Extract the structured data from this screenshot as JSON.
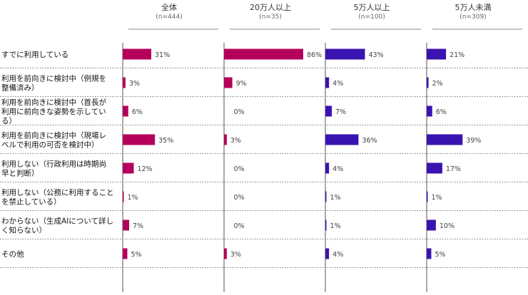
{
  "chart_data": {
    "type": "bar",
    "orientation": "horizontal",
    "groups": [
      {
        "title": "全体",
        "n": "(n=444)",
        "color": "#b5005b",
        "values": [
          31,
          3,
          6,
          35,
          12,
          1,
          7,
          5
        ],
        "value_labels": [
          "31%",
          "3%",
          "6%",
          "35%",
          "12%",
          "1%",
          "7%",
          "5%"
        ]
      },
      {
        "title": "20万人以上",
        "n": "(n=35)",
        "color": "#b5005b",
        "values": [
          86,
          9,
          0,
          3,
          0,
          0,
          0,
          3
        ],
        "value_labels": [
          "86%",
          "9%",
          "0%",
          "3%",
          "0%",
          "0%",
          "0%",
          "3%"
        ]
      },
      {
        "title": "5万人以上",
        "n": "(n=100)",
        "color": "#3b13b0",
        "values": [
          43,
          4,
          7,
          36,
          4,
          1,
          1,
          4
        ],
        "value_labels": [
          "43%",
          "4%",
          "7%",
          "36%",
          "4%",
          "1%",
          "1%",
          "4%"
        ]
      },
      {
        "title": "5万人未満",
        "n": "(n=309)",
        "color": "#3b13b0",
        "values": [
          21,
          2,
          6,
          39,
          17,
          1,
          10,
          5
        ],
        "value_labels": [
          "21%",
          "2%",
          "6%",
          "39%",
          "17%",
          "1%",
          "10%",
          "5%"
        ]
      }
    ],
    "categories": [
      [
        "すでに利用している"
      ],
      [
        "利用を前向きに検討中（例規を",
        "整備済み）"
      ],
      [
        "利用を前向きに検討中（首長が",
        "利用に前向きな姿勢を示してい",
        "る）"
      ],
      [
        "利用を前向きに検討中（現場レ",
        "ベルで利用の可否を検討中）"
      ],
      [
        "利用しない（行政利用は時期尚",
        "早と判断）"
      ],
      [
        "利用しない（公務に利用すること",
        "を禁止している）"
      ],
      [
        "わからない（生成AIについて詳し",
        "く知らない）"
      ],
      [
        "その他"
      ]
    ],
    "xlim": [
      0,
      100
    ]
  }
}
